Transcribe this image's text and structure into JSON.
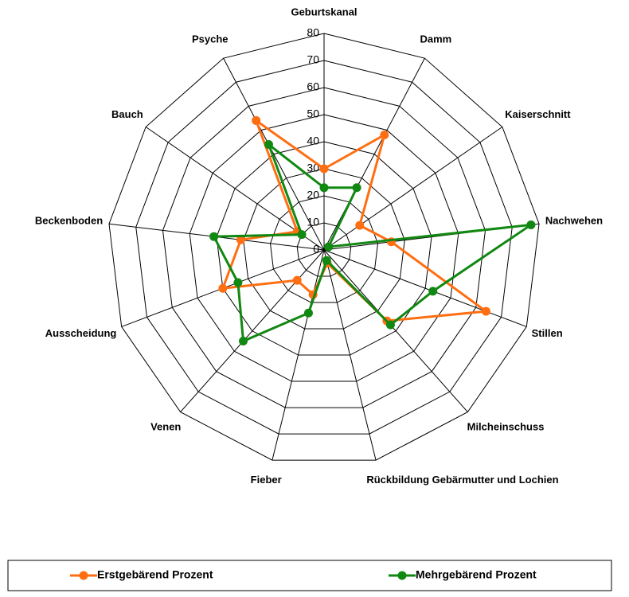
{
  "chart_data": {
    "type": "radar",
    "categories": [
      "Geburtskanal",
      "Damm",
      "Kaiserschnitt",
      "Nachwehen",
      "Stillen",
      "Milcheinschuss",
      "Rückbildung Gebärmutter und Lochien",
      "Fieber",
      "Venen",
      "Ausscheidung",
      "Beckenboden",
      "Bauch",
      "Psyche"
    ],
    "series": [
      {
        "name": "Erstgebärend Prozent",
        "color": "#ff6e11",
        "values": [
          30,
          48,
          16,
          25,
          64,
          35,
          5,
          17,
          15,
          40,
          31,
          12,
          54
        ]
      },
      {
        "name": "Mehrgebärend Prozent",
        "color": "#118811",
        "values": [
          23,
          26,
          2,
          77,
          43,
          37,
          4,
          24,
          45,
          34,
          41,
          10,
          44
        ]
      }
    ],
    "ylim": [
      0,
      80
    ],
    "yticks": [
      0,
      10,
      20,
      30,
      40,
      50,
      60,
      70,
      80
    ],
    "grid": true,
    "legend": "bottom"
  }
}
